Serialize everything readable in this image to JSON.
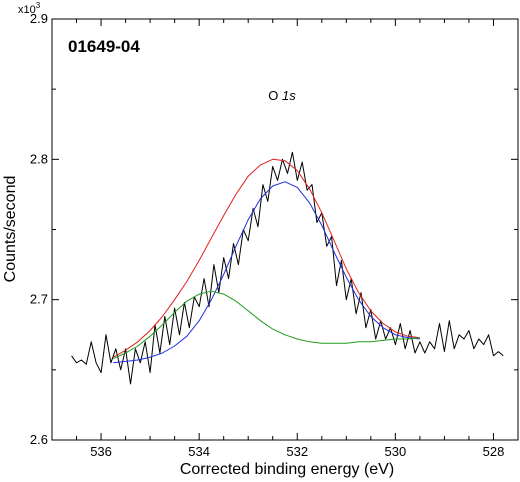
{
  "chart_data": {
    "type": "line",
    "sample_id": "01649-04",
    "annotation": "O 1s",
    "annotation_prefix": "O",
    "annotation_italic": "1s",
    "multiplier": "x10",
    "multiplier_exp": "3",
    "xlabel": "Corrected binding energy (eV)",
    "ylabel": "Counts/second",
    "xlim": [
      537,
      527.5
    ],
    "ylim": [
      2.6,
      2.9
    ],
    "x_ticks": [
      536,
      534,
      532,
      530,
      528
    ],
    "y_ticks": [
      2.6,
      2.7,
      2.8,
      2.9
    ],
    "x_minor_step": 0.5,
    "y_minor_step": 0.05,
    "grid": false,
    "series": [
      {
        "color": "#000000",
        "x": [
          536.6,
          536.5,
          536.4,
          536.3,
          536.2,
          536.1,
          536.0,
          535.9,
          535.8,
          535.7,
          535.6,
          535.5,
          535.4,
          535.3,
          535.2,
          535.1,
          535.0,
          534.9,
          534.8,
          534.7,
          534.6,
          534.5,
          534.4,
          534.3,
          534.2,
          534.1,
          534.0,
          533.9,
          533.8,
          533.7,
          533.6,
          533.5,
          533.4,
          533.3,
          533.2,
          533.1,
          533.0,
          532.9,
          532.8,
          532.7,
          532.6,
          532.5,
          532.4,
          532.3,
          532.2,
          532.1,
          532.0,
          531.9,
          531.8,
          531.7,
          531.6,
          531.5,
          531.4,
          531.3,
          531.2,
          531.1,
          531.0,
          530.9,
          530.8,
          530.7,
          530.6,
          530.5,
          530.4,
          530.3,
          530.2,
          530.1,
          530.0,
          529.9,
          529.8,
          529.7,
          529.6,
          529.5,
          529.4,
          529.3,
          529.2,
          529.1,
          529.0,
          528.9,
          528.8,
          528.7,
          528.6,
          528.5,
          528.4,
          528.3,
          528.2,
          528.1,
          528.0,
          527.9,
          527.8
        ],
        "values": [
          2.66,
          2.655,
          2.657,
          2.654,
          2.67,
          2.655,
          2.648,
          2.675,
          2.655,
          2.665,
          2.65,
          2.665,
          2.64,
          2.665,
          2.655,
          2.67,
          2.648,
          2.682,
          2.662,
          2.688,
          2.668,
          2.694,
          2.675,
          2.698,
          2.68,
          2.702,
          2.695,
          2.715,
          2.695,
          2.725,
          2.705,
          2.73,
          2.715,
          2.74,
          2.725,
          2.75,
          2.742,
          2.765,
          2.752,
          2.782,
          2.77,
          2.795,
          2.785,
          2.8,
          2.79,
          2.805,
          2.785,
          2.798,
          2.778,
          2.782,
          2.755,
          2.762,
          2.738,
          2.745,
          2.71,
          2.728,
          2.7,
          2.715,
          2.69,
          2.705,
          2.68,
          2.693,
          2.672,
          2.685,
          2.672,
          2.68,
          2.668,
          2.683,
          2.665,
          2.678,
          2.662,
          2.67,
          2.662,
          2.67,
          2.665,
          2.683,
          2.663,
          2.685,
          2.665,
          2.675,
          2.672,
          2.678,
          2.665,
          2.672,
          2.668,
          2.675,
          2.66,
          2.663,
          2.66
        ]
      },
      {
        "color": "#e0201c",
        "x": [
          535.75,
          535.5,
          535.25,
          535.0,
          534.75,
          534.5,
          534.25,
          534.0,
          533.75,
          533.5,
          533.25,
          533.0,
          532.75,
          532.5,
          532.25,
          532.0,
          531.75,
          531.5,
          531.25,
          531.0,
          530.75,
          530.5,
          530.25,
          530.0,
          529.75,
          529.5
        ],
        "values": [
          2.659,
          2.664,
          2.67,
          2.678,
          2.688,
          2.7,
          2.713,
          2.728,
          2.744,
          2.76,
          2.775,
          2.788,
          2.796,
          2.8,
          2.799,
          2.792,
          2.779,
          2.762,
          2.742,
          2.722,
          2.705,
          2.692,
          2.683,
          2.677,
          2.674,
          2.673
        ]
      },
      {
        "color": "#1f2ee0",
        "x": [
          535.75,
          535.5,
          535.25,
          535.0,
          534.75,
          534.5,
          534.25,
          534.0,
          533.75,
          533.5,
          533.25,
          533.0,
          532.75,
          532.5,
          532.25,
          532.0,
          531.75,
          531.5,
          531.25,
          531.0,
          530.75,
          530.5,
          530.25,
          530.0,
          529.75,
          529.5
        ],
        "values": [
          2.655,
          2.656,
          2.657,
          2.659,
          2.662,
          2.667,
          2.674,
          2.685,
          2.7,
          2.718,
          2.738,
          2.757,
          2.772,
          2.781,
          2.784,
          2.78,
          2.769,
          2.753,
          2.734,
          2.716,
          2.7,
          2.688,
          2.68,
          2.675,
          2.673,
          2.672
        ]
      },
      {
        "color": "#1e9a1e",
        "x": [
          535.75,
          535.5,
          535.25,
          535.0,
          534.75,
          534.5,
          534.25,
          534.0,
          533.75,
          533.5,
          533.25,
          533.0,
          532.75,
          532.5,
          532.25,
          532.0,
          531.75,
          531.5,
          531.25,
          531.0,
          530.75,
          530.5,
          530.25,
          530.0,
          529.75,
          529.5
        ],
        "values": [
          2.658,
          2.662,
          2.667,
          2.674,
          2.682,
          2.691,
          2.699,
          2.704,
          2.706,
          2.704,
          2.699,
          2.692,
          2.685,
          2.679,
          2.675,
          2.672,
          2.67,
          2.669,
          2.669,
          2.669,
          2.67,
          2.67,
          2.671,
          2.672,
          2.672,
          2.673
        ]
      }
    ]
  }
}
